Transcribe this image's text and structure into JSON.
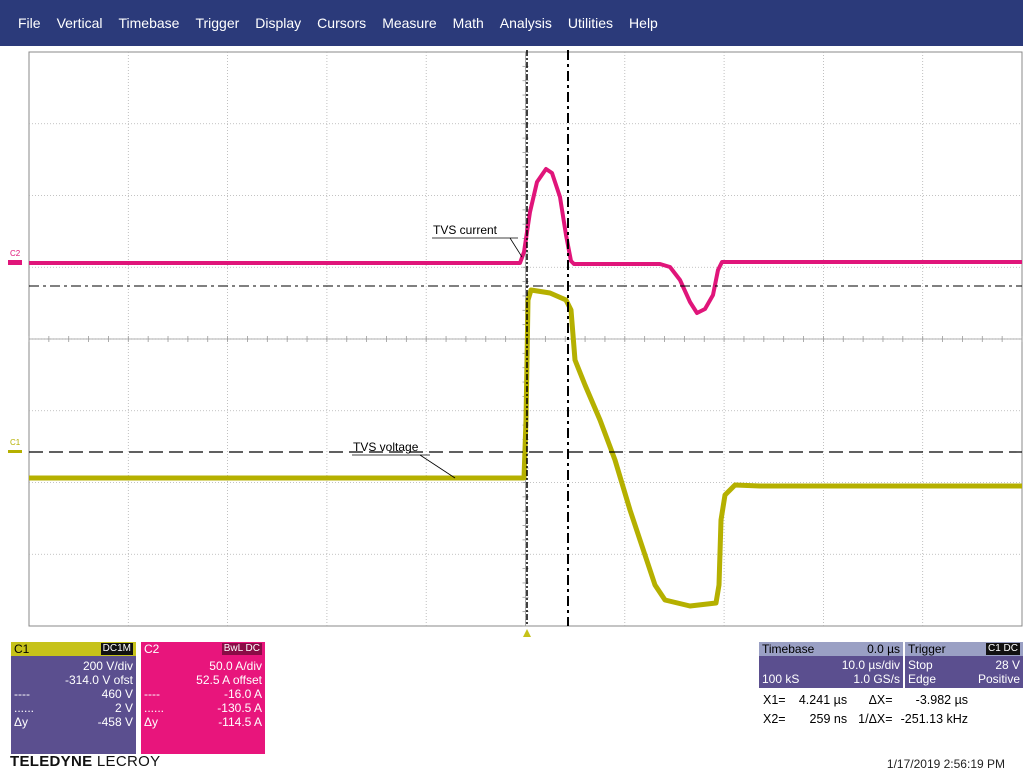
{
  "menu": [
    "File",
    "Vertical",
    "Timebase",
    "Trigger",
    "Display",
    "Cursors",
    "Measure",
    "Math",
    "Analysis",
    "Utilities",
    "Help"
  ],
  "colors": {
    "c1": "#b5b000",
    "c2": "#e0157a",
    "menubar": "#2b3a7a",
    "grid": "#b0b0b0"
  },
  "trace_labels": {
    "current": "TVS current",
    "voltage": "TVS voltage"
  },
  "channel_markers": {
    "c1": "C1",
    "c2": "C2"
  },
  "c1": {
    "name": "C1",
    "coupling": "DC1M",
    "scale": "200 V/div",
    "offset": "-314.0 V ofst",
    "cursor1": "460 V",
    "cursor2": "2 V",
    "delta_label": "Δy",
    "delta": "-458 V"
  },
  "c2": {
    "name": "C2",
    "coupling": "BwL DC",
    "scale": "50.0 A/div",
    "offset": "52.5 A offset",
    "cursor1": "-16.0 A",
    "cursor2": "-130.5 A",
    "delta_label": "Δy",
    "delta": "-114.5 A"
  },
  "timebase": {
    "label": "Timebase",
    "delay": "0.0 µs",
    "scale": "10.0 µs/div",
    "points": "100 kS",
    "rate": "1.0 GS/s"
  },
  "trigger": {
    "label": "Trigger",
    "channel": "C1 DC",
    "mode": "Stop",
    "level": "28 V",
    "type": "Edge",
    "slope": "Positive"
  },
  "cursors": {
    "x1_label": "X1=",
    "x1": "4.241 µs",
    "dx_label": "ΔX=",
    "dx": "-3.982 µs",
    "x2_label": "X2=",
    "x2": "259 ns",
    "inv_dx_label": "1/ΔX=",
    "inv_dx": "-251.13 kHz"
  },
  "brand": {
    "bold": "TELEDYNE",
    "normal": " LECROY"
  },
  "timestamp": "1/17/2019 2:56:19 PM"
}
